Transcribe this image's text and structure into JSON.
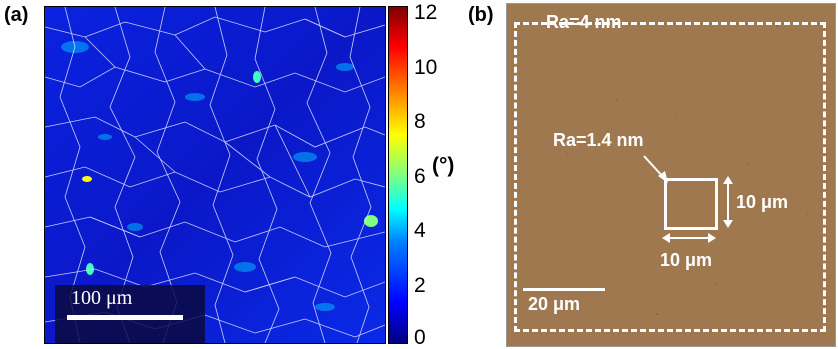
{
  "panel_a": {
    "label": "(a)",
    "scale_bar_text": "100 μm",
    "colorbar": {
      "ticks": [
        "12",
        "10",
        "8",
        "6",
        "4",
        "2",
        "0"
      ],
      "unit": "(°)",
      "min": 0,
      "max": 12,
      "colors": [
        "#00007f",
        "#0000ff",
        "#00ffff",
        "#ffff00",
        "#ff0000",
        "#800000"
      ]
    }
  },
  "panel_b": {
    "label": "(b)",
    "outer_roughness": "Ra=4 nm",
    "inner_roughness": "Ra=1.4 nm",
    "square_width": "10 μm",
    "square_height": "10 μm",
    "scale_bar_text": "20 μm",
    "surface_color": "#a0784f"
  }
}
